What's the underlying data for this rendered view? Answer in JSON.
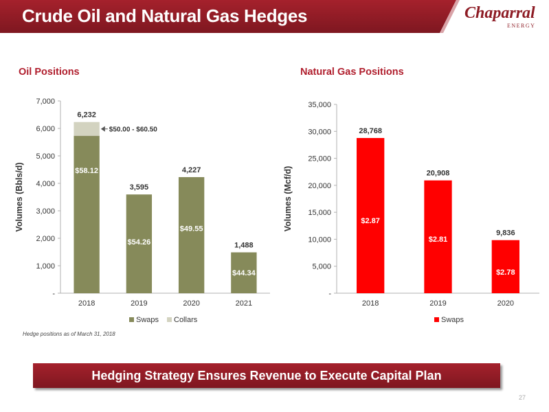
{
  "page": {
    "title": "Crude Oil and Natural Gas Hedges",
    "logo_text": "Chaparral",
    "logo_sub": "ENERGY",
    "footnote": "Hedge positions as of March 31, 2018",
    "banner": "Hedging Strategy Ensures Revenue to Execute Capital Plan",
    "page_number": "27",
    "colors": {
      "header": "#8d1b24",
      "oil_swaps": "#868a5a",
      "oil_collars": "#d3d3c0",
      "gas_swaps": "#ff0000"
    }
  },
  "oil_title": "Oil Positions",
  "gas_title": "Natural Gas Positions",
  "chart_data": [
    {
      "type": "bar",
      "stacked": true,
      "title": "Oil Positions",
      "ylabel": "Volumes (Bbls/d)",
      "ylim": [
        0,
        7000
      ],
      "yticks": [
        0,
        1000,
        2000,
        3000,
        4000,
        5000,
        6000,
        7000
      ],
      "ytick_labels": [
        "-",
        "1,000",
        "2,000",
        "3,000",
        "4,000",
        "5,000",
        "6,000",
        "7,000"
      ],
      "categories": [
        "2018",
        "2019",
        "2020",
        "2021"
      ],
      "series": [
        {
          "name": "Swaps",
          "values": [
            5732,
            3595,
            4227,
            1488
          ],
          "color": "#868a5a"
        },
        {
          "name": "Collars",
          "values": [
            500,
            0,
            0,
            0
          ],
          "color": "#d3d3c0"
        }
      ],
      "totals": [
        "6,232",
        "3,595",
        "4,227",
        "1,488"
      ],
      "price_labels": [
        "$58.12",
        "$54.26",
        "$49.55",
        "$44.34"
      ],
      "annotation": {
        "text": "$50.00 - $60.50",
        "category": "2018",
        "series": "Collars"
      },
      "legend": "bottom"
    },
    {
      "type": "bar",
      "title": "Natural Gas Positions",
      "ylabel": "Volumes (Mcf/d)",
      "ylim": [
        0,
        35000
      ],
      "yticks": [
        0,
        5000,
        10000,
        15000,
        20000,
        25000,
        30000,
        35000
      ],
      "ytick_labels": [
        "-",
        "5,000",
        "10,000",
        "15,000",
        "20,000",
        "25,000",
        "30,000",
        "35,000"
      ],
      "categories": [
        "2018",
        "2019",
        "2020"
      ],
      "series": [
        {
          "name": "Swaps",
          "values": [
            28768,
            20908,
            9836
          ],
          "color": "#ff0000"
        }
      ],
      "totals": [
        "28,768",
        "20,908",
        "9,836"
      ],
      "price_labels": [
        "$2.87",
        "$2.81",
        "$2.78"
      ],
      "legend": "bottom"
    }
  ]
}
